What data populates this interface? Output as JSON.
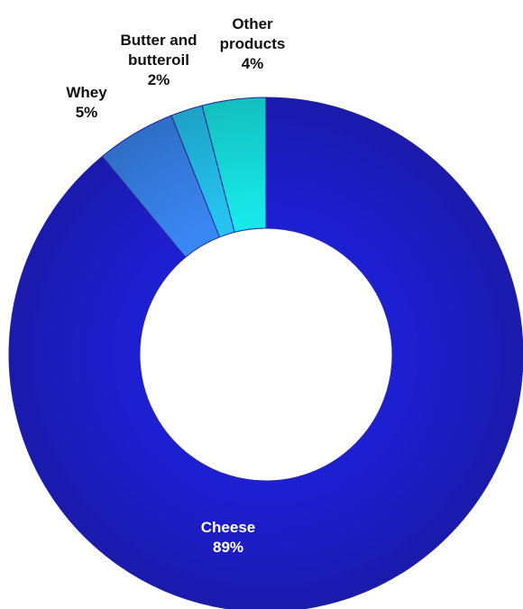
{
  "chart_data": {
    "type": "donut",
    "title": "",
    "series": [
      {
        "values": [
          89,
          5,
          2,
          4
        ],
        "categories": [
          "Cheese",
          "Whey",
          "Butter and butteroil",
          "Other products"
        ]
      }
    ],
    "labels": [
      {
        "category": [
          "Cheese"
        ],
        "value": "89%",
        "color": "#ffffff"
      },
      {
        "category": [
          "Whey"
        ],
        "value": "5%",
        "color": "#111111"
      },
      {
        "category": [
          "Butter and",
          "butteroil"
        ],
        "value": "2%",
        "color": "#111111"
      },
      {
        "category": [
          "Other",
          "products"
        ],
        "value": "4%",
        "color": "#111111"
      }
    ],
    "colors": [
      "#1f1fd2",
      "#3a86f2",
      "#25c4f0",
      "#18e8e8"
    ],
    "legend": "none",
    "start_position": "12 o'clock, clockwise"
  }
}
